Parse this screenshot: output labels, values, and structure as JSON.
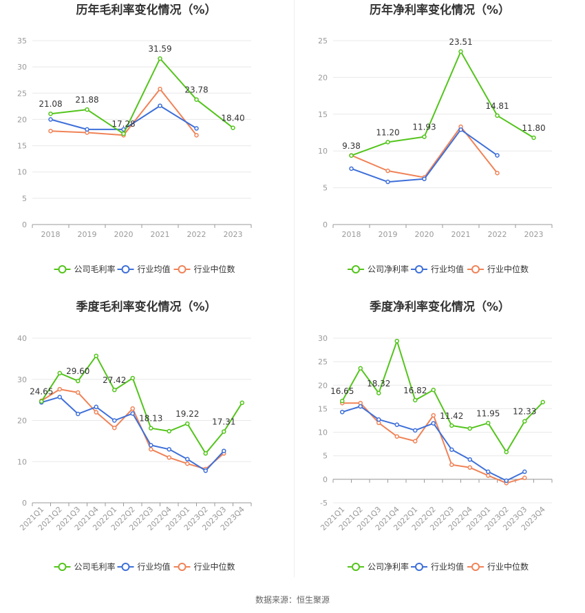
{
  "colors": {
    "company": "#52c41a",
    "avg": "#3d6fd9",
    "median": "#f08256"
  },
  "source_text": "数据来源：恒生聚源",
  "chart_data": [
    {
      "type": "line",
      "title": "历年毛利率变化情况（%）",
      "categories": [
        "2018",
        "2019",
        "2020",
        "2021",
        "2022",
        "2023"
      ],
      "ylim": [
        0,
        35
      ],
      "yticks": [
        0,
        5,
        10,
        15,
        20,
        25,
        30,
        35
      ],
      "grid": true,
      "legend_position": "bottom",
      "series": [
        {
          "name": "公司毛利率",
          "values": [
            21.08,
            21.88,
            17.28,
            31.59,
            23.78,
            18.4
          ],
          "labels": [
            "21.08",
            "21.88",
            "17.28",
            "31.59",
            "23.78",
            "18.40"
          ]
        },
        {
          "name": "行业均值",
          "values": [
            20.0,
            18.1,
            18.1,
            22.6,
            18.3,
            null
          ]
        },
        {
          "name": "行业中位数",
          "values": [
            17.8,
            17.5,
            17.0,
            25.8,
            17.0,
            null
          ]
        }
      ]
    },
    {
      "type": "line",
      "title": "历年净利率变化情况（%）",
      "categories": [
        "2018",
        "2019",
        "2020",
        "2021",
        "2022",
        "2023"
      ],
      "ylim": [
        0,
        25
      ],
      "yticks": [
        0,
        5,
        10,
        15,
        20,
        25
      ],
      "grid": true,
      "legend_position": "bottom",
      "series": [
        {
          "name": "公司净利率",
          "values": [
            9.38,
            11.2,
            11.93,
            23.51,
            14.81,
            11.8
          ],
          "labels": [
            "9.38",
            "11.20",
            "11.93",
            "23.51",
            "14.81",
            "11.80"
          ]
        },
        {
          "name": "行业均值",
          "values": [
            7.6,
            5.8,
            6.2,
            12.9,
            9.4,
            null
          ]
        },
        {
          "name": "行业中位数",
          "values": [
            9.4,
            7.3,
            6.4,
            13.3,
            7.0,
            null
          ]
        }
      ]
    },
    {
      "type": "line",
      "title": "季度毛利率变化情况（%）",
      "categories": [
        "2021Q1",
        "2021Q2",
        "2021Q3",
        "2021Q4",
        "2022Q1",
        "2022Q2",
        "2022Q3",
        "2022Q4",
        "2023Q1",
        "2023Q2",
        "2023Q3",
        "2023Q4"
      ],
      "ylim": [
        0,
        40
      ],
      "yticks": [
        0,
        10,
        20,
        30,
        40
      ],
      "grid": true,
      "legend_position": "bottom",
      "series": [
        {
          "name": "公司毛利率",
          "values": [
            24.65,
            31.5,
            29.6,
            35.7,
            27.42,
            30.3,
            18.13,
            17.4,
            19.22,
            12.0,
            17.31,
            24.3
          ],
          "labels": [
            "24.65",
            "",
            "29.60",
            "",
            "27.42",
            "",
            "18.13",
            "",
            "19.22",
            "",
            "17.31",
            ""
          ]
        },
        {
          "name": "行业均值",
          "values": [
            24.4,
            25.7,
            21.6,
            23.3,
            20.0,
            21.7,
            14.0,
            13.0,
            10.6,
            7.8,
            12.6,
            null
          ]
        },
        {
          "name": "行业中位数",
          "values": [
            24.8,
            27.6,
            26.8,
            22.0,
            18.2,
            22.9,
            13.0,
            11.0,
            9.5,
            8.2,
            12.0,
            null
          ]
        }
      ]
    },
    {
      "type": "line",
      "title": "季度净利率变化情况（%）",
      "categories": [
        "2021Q1",
        "2021Q2",
        "2021Q3",
        "2021Q4",
        "2022Q1",
        "2022Q2",
        "2022Q3",
        "2022Q4",
        "2023Q1",
        "2023Q2",
        "2023Q3",
        "2023Q4"
      ],
      "ylim": [
        -5,
        30
      ],
      "yticks": [
        -5,
        0,
        5,
        10,
        15,
        20,
        25,
        30
      ],
      "grid": true,
      "legend_position": "bottom",
      "series": [
        {
          "name": "公司净利率",
          "values": [
            16.65,
            23.6,
            18.32,
            29.4,
            16.82,
            19.0,
            11.42,
            10.8,
            11.95,
            5.8,
            12.33,
            16.4
          ],
          "labels": [
            "16.65",
            "",
            "18.32",
            "",
            "16.82",
            "",
            "11.42",
            "",
            "11.95",
            "",
            "12.33",
            ""
          ]
        },
        {
          "name": "行业均值",
          "values": [
            14.3,
            15.5,
            12.7,
            11.6,
            10.4,
            11.9,
            6.3,
            4.2,
            1.6,
            -0.3,
            1.6,
            null
          ]
        },
        {
          "name": "行业中位数",
          "values": [
            16.2,
            16.2,
            12.0,
            9.1,
            8.1,
            13.6,
            3.1,
            2.5,
            0.8,
            -0.8,
            0.3,
            null
          ]
        }
      ]
    }
  ]
}
